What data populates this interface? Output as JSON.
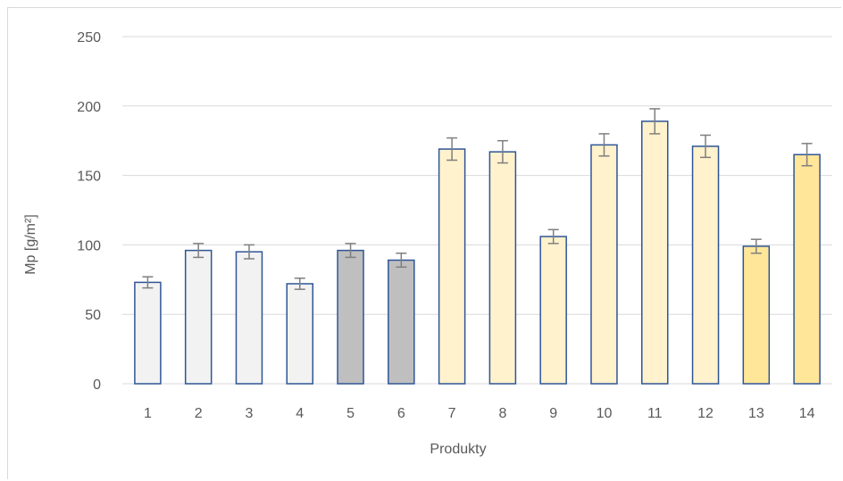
{
  "chart_data": {
    "type": "bar",
    "title": "",
    "xlabel": "Produkty",
    "ylabel": "Mp [g/m²]",
    "ylim": [
      0,
      250
    ],
    "yticks": [
      0,
      50,
      100,
      150,
      200,
      250
    ],
    "grid": true,
    "categories": [
      "1",
      "2",
      "3",
      "4",
      "5",
      "6",
      "7",
      "8",
      "9",
      "10",
      "11",
      "12",
      "13",
      "14"
    ],
    "values": [
      73,
      96,
      95,
      72,
      96,
      89,
      169,
      167,
      106,
      172,
      189,
      171,
      99,
      165
    ],
    "errors": [
      4,
      5,
      5,
      4,
      5,
      5,
      8,
      8,
      5,
      8,
      9,
      8,
      5,
      8
    ],
    "bar_colors": [
      "#f2f2f2",
      "#f2f2f2",
      "#f2f2f2",
      "#f2f2f2",
      "#bfbfbf",
      "#bfbfbf",
      "#fff2cc",
      "#fff2cc",
      "#fff2cc",
      "#fff2cc",
      "#fff2cc",
      "#fff2cc",
      "#ffe699",
      "#ffe699"
    ],
    "bar_edge_color": "#2f5597",
    "error_bar_color": "#7f7f7f",
    "grid_color": "#d9d9d9"
  }
}
